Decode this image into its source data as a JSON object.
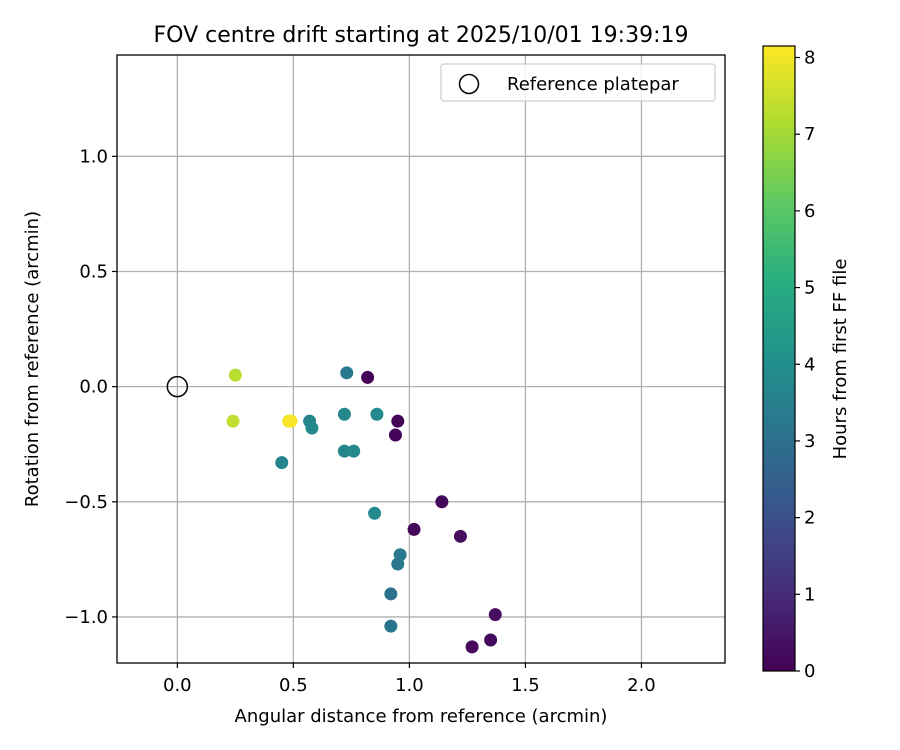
{
  "chart_data": {
    "type": "scatter",
    "title": "FOV centre drift starting at 2025/10/01 19:39:19",
    "xlabel": "Angular distance from reference (arcmin)",
    "ylabel": "Rotation from reference (arcmin)",
    "xlim": [
      -0.26,
      2.36
    ],
    "ylim": [
      -1.2,
      1.44
    ],
    "xticks": [
      0.0,
      0.5,
      1.0,
      1.5,
      2.0
    ],
    "xtick_labels": [
      "0.0",
      "0.5",
      "1.0",
      "1.5",
      "2.0"
    ],
    "yticks": [
      -1.0,
      -0.5,
      0.0,
      0.5,
      1.0
    ],
    "ytick_labels": [
      "−1.0",
      "−0.5",
      "0.0",
      "0.5",
      "1.0"
    ],
    "grid": true,
    "legend": {
      "placement": "top-right",
      "entries": [
        "Reference platepar"
      ]
    },
    "reference_point": {
      "x": 0.0,
      "y": 0.0,
      "label": "Reference platepar"
    },
    "colorbar": {
      "label": "Hours from first FF file",
      "min": 0,
      "max": 8.15,
      "colormap": "viridis",
      "ticks": [
        0,
        1,
        2,
        3,
        4,
        5,
        6,
        7,
        8
      ],
      "tick_labels": [
        "0",
        "1",
        "2",
        "3",
        "4",
        "5",
        "6",
        "7",
        "8"
      ]
    },
    "points": [
      {
        "x": 0.82,
        "y": 0.04,
        "hours": 0.1
      },
      {
        "x": 0.95,
        "y": -0.15,
        "hours": 0.1
      },
      {
        "x": 0.94,
        "y": -0.21,
        "hours": 0.1
      },
      {
        "x": 1.14,
        "y": -0.5,
        "hours": 0.2
      },
      {
        "x": 1.02,
        "y": -0.62,
        "hours": 0.2
      },
      {
        "x": 1.22,
        "y": -0.65,
        "hours": 0.3
      },
      {
        "x": 1.37,
        "y": -0.99,
        "hours": 0.3
      },
      {
        "x": 1.35,
        "y": -1.1,
        "hours": 0.2
      },
      {
        "x": 1.27,
        "y": -1.13,
        "hours": 0.2
      },
      {
        "x": 0.73,
        "y": 0.06,
        "hours": 3.3
      },
      {
        "x": 0.72,
        "y": -0.12,
        "hours": 3.8
      },
      {
        "x": 0.86,
        "y": -0.12,
        "hours": 3.9
      },
      {
        "x": 0.57,
        "y": -0.15,
        "hours": 3.7
      },
      {
        "x": 0.58,
        "y": -0.18,
        "hours": 3.8
      },
      {
        "x": 0.72,
        "y": -0.28,
        "hours": 3.7
      },
      {
        "x": 0.76,
        "y": -0.28,
        "hours": 3.8
      },
      {
        "x": 0.45,
        "y": -0.33,
        "hours": 3.7
      },
      {
        "x": 0.85,
        "y": -0.55,
        "hours": 3.9
      },
      {
        "x": 0.96,
        "y": -0.73,
        "hours": 3.4
      },
      {
        "x": 0.95,
        "y": -0.77,
        "hours": 3.3
      },
      {
        "x": 0.92,
        "y": -0.9,
        "hours": 3.1
      },
      {
        "x": 0.92,
        "y": -1.04,
        "hours": 3.2
      },
      {
        "x": 0.25,
        "y": 0.05,
        "hours": 7.3
      },
      {
        "x": 0.24,
        "y": -0.15,
        "hours": 7.4
      },
      {
        "x": 0.48,
        "y": -0.15,
        "hours": 8.0
      },
      {
        "x": 0.49,
        "y": -0.15,
        "hours": 8.1
      }
    ]
  }
}
